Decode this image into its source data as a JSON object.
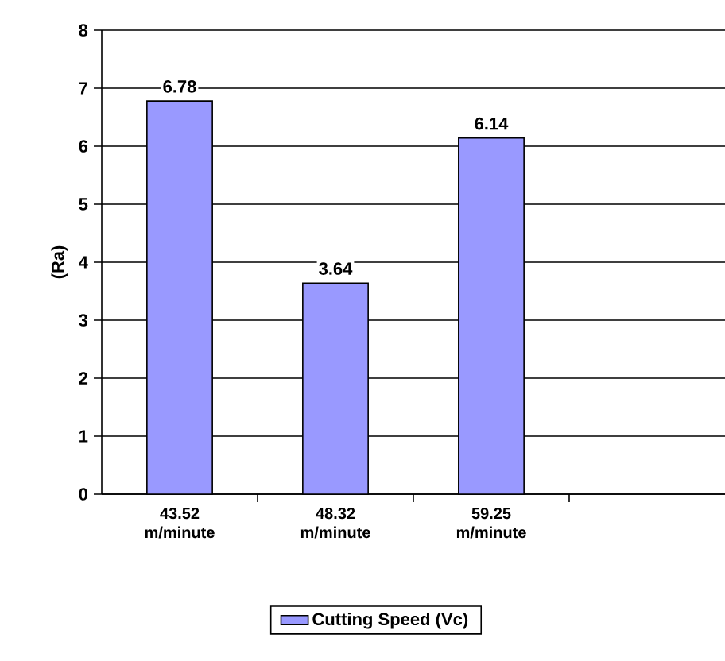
{
  "chart_data": {
    "type": "bar",
    "ylabel": "(Ra)",
    "categories": [
      "43.52 m/minute",
      "48.32 m/minute",
      "59.25 m/minute",
      null
    ],
    "series": [
      {
        "name": "Cutting Speed (Vc)",
        "color": "#9999ff",
        "values": [
          6.78,
          3.64,
          6.14,
          null
        ]
      }
    ],
    "ylim": [
      0,
      8
    ],
    "yticks": [
      0,
      1,
      2,
      3,
      4,
      5,
      6,
      7,
      8
    ],
    "grid": "y",
    "legend": "bottom",
    "data_labels": true
  }
}
